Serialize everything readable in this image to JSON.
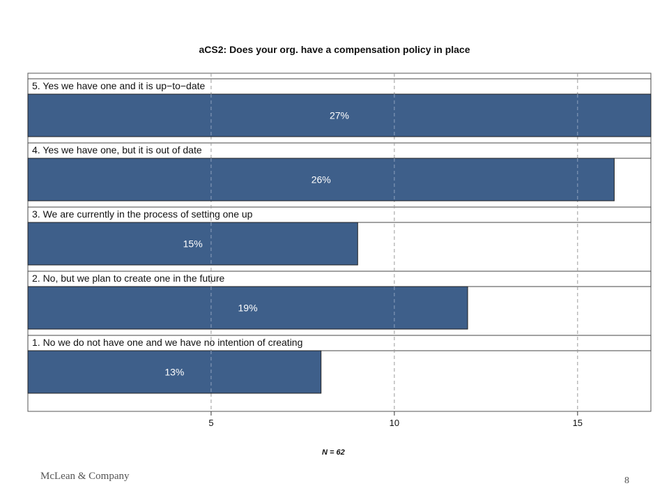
{
  "chart_data": {
    "type": "bar",
    "orientation": "horizontal",
    "title": "aCS2: Does your org. have a compensation policy in place",
    "categories": [
      "5. Yes we have one and it is up−to−date",
      "4. Yes we have one, but it is out of date",
      "3. We are currently in the process of setting one up",
      "2. No, but we plan to create one in the future",
      "1. No  we do not have one and we have no intention of creating"
    ],
    "values": [
      17,
      16,
      9,
      12,
      8
    ],
    "data_labels": [
      "27%",
      "26%",
      "15%",
      "19%",
      "13%"
    ],
    "xlim": [
      0,
      17
    ],
    "xticks": [
      5,
      10,
      15
    ],
    "xtick_labels": [
      "5",
      "10",
      "15"
    ],
    "grid": "vertical dashed",
    "bar_color": "#3e5f8a"
  },
  "note": "N = 62",
  "footer": {
    "company": "McLean & Company",
    "page": "8"
  }
}
